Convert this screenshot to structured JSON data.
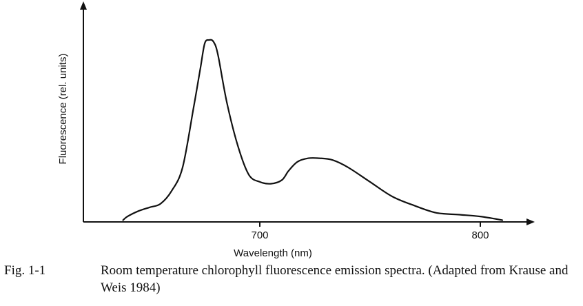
{
  "chart_data": {
    "type": "line",
    "xlabel": "Wavelength (nm)",
    "ylabel": "Fluorescence (rel. units)",
    "xlim": [
      620,
      825
    ],
    "ylim": [
      0,
      100
    ],
    "xticks": [
      700,
      800
    ],
    "grid": false,
    "series": [
      {
        "x": [
          638,
          640,
          645,
          650,
          655,
          660,
          665,
          670,
          673,
          675,
          677,
          679,
          681,
          685,
          690,
          695,
          700,
          705,
          710,
          713,
          717,
          722,
          727,
          733,
          740,
          750,
          760,
          770,
          780,
          790,
          800,
          810
        ],
        "y": [
          1,
          3,
          6,
          8,
          10,
          17,
          30,
          63,
          84,
          98,
          100,
          99,
          92,
          66,
          42,
          26,
          22,
          21,
          23,
          28,
          33,
          35,
          35,
          34,
          30,
          22,
          14,
          9,
          5,
          4,
          3,
          1
        ]
      }
    ]
  },
  "caption": {
    "label": "Fig. 1-1",
    "text": "Room temperature chlorophyll fluorescence emission spectra. (Adapted from Krause and Weis 1984)"
  }
}
